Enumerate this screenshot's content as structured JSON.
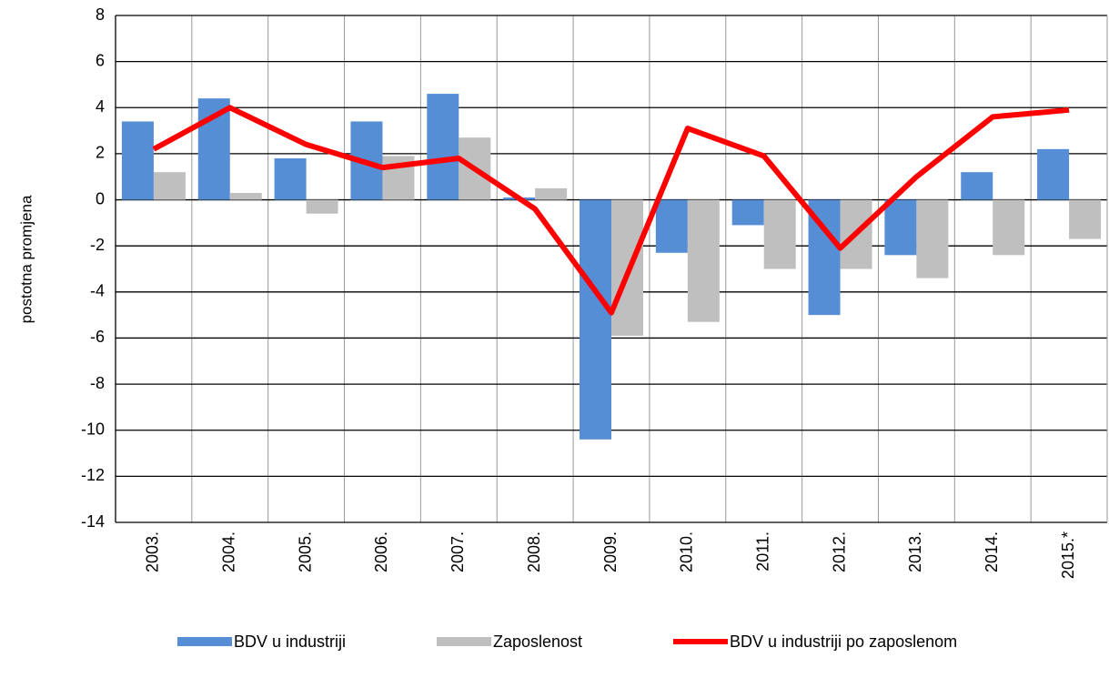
{
  "chart_data": {
    "type": "bar",
    "y_label": "postotna promjena",
    "categories": [
      "2003.",
      "2004.",
      "2005.",
      "2006.",
      "2007.",
      "2008.",
      "2009.",
      "2010.",
      "2011.",
      "2012.",
      "2013.",
      "2014.",
      "2015.*"
    ],
    "series": [
      {
        "name": "BDV u industriji",
        "type": "bar",
        "color": "#558ed5",
        "values": [
          3.4,
          4.4,
          1.8,
          3.4,
          4.6,
          0.1,
          -10.4,
          -2.3,
          -1.1,
          -5.0,
          -2.4,
          1.2,
          2.2
        ]
      },
      {
        "name": "Zaposlenost",
        "type": "bar",
        "color": "#bfbfbf",
        "values": [
          1.2,
          0.3,
          -0.6,
          1.9,
          2.7,
          0.5,
          -5.9,
          -5.3,
          -3.0,
          -3.0,
          -3.4,
          -2.4,
          -1.7
        ]
      },
      {
        "name": "BDV u industriji po zaposlenom",
        "type": "line",
        "color": "#ff0000",
        "values": [
          2.2,
          4.0,
          2.4,
          1.4,
          1.8,
          -0.4,
          -4.9,
          3.1,
          1.9,
          -2.1,
          1.0,
          3.6,
          3.9
        ]
      }
    ],
    "ylim": [
      -14,
      8
    ],
    "yticks": [
      -14,
      -12,
      -10,
      -8,
      -6,
      -4,
      -2,
      0,
      2,
      4,
      6,
      8
    ],
    "grid": true,
    "legend": "bottom"
  }
}
